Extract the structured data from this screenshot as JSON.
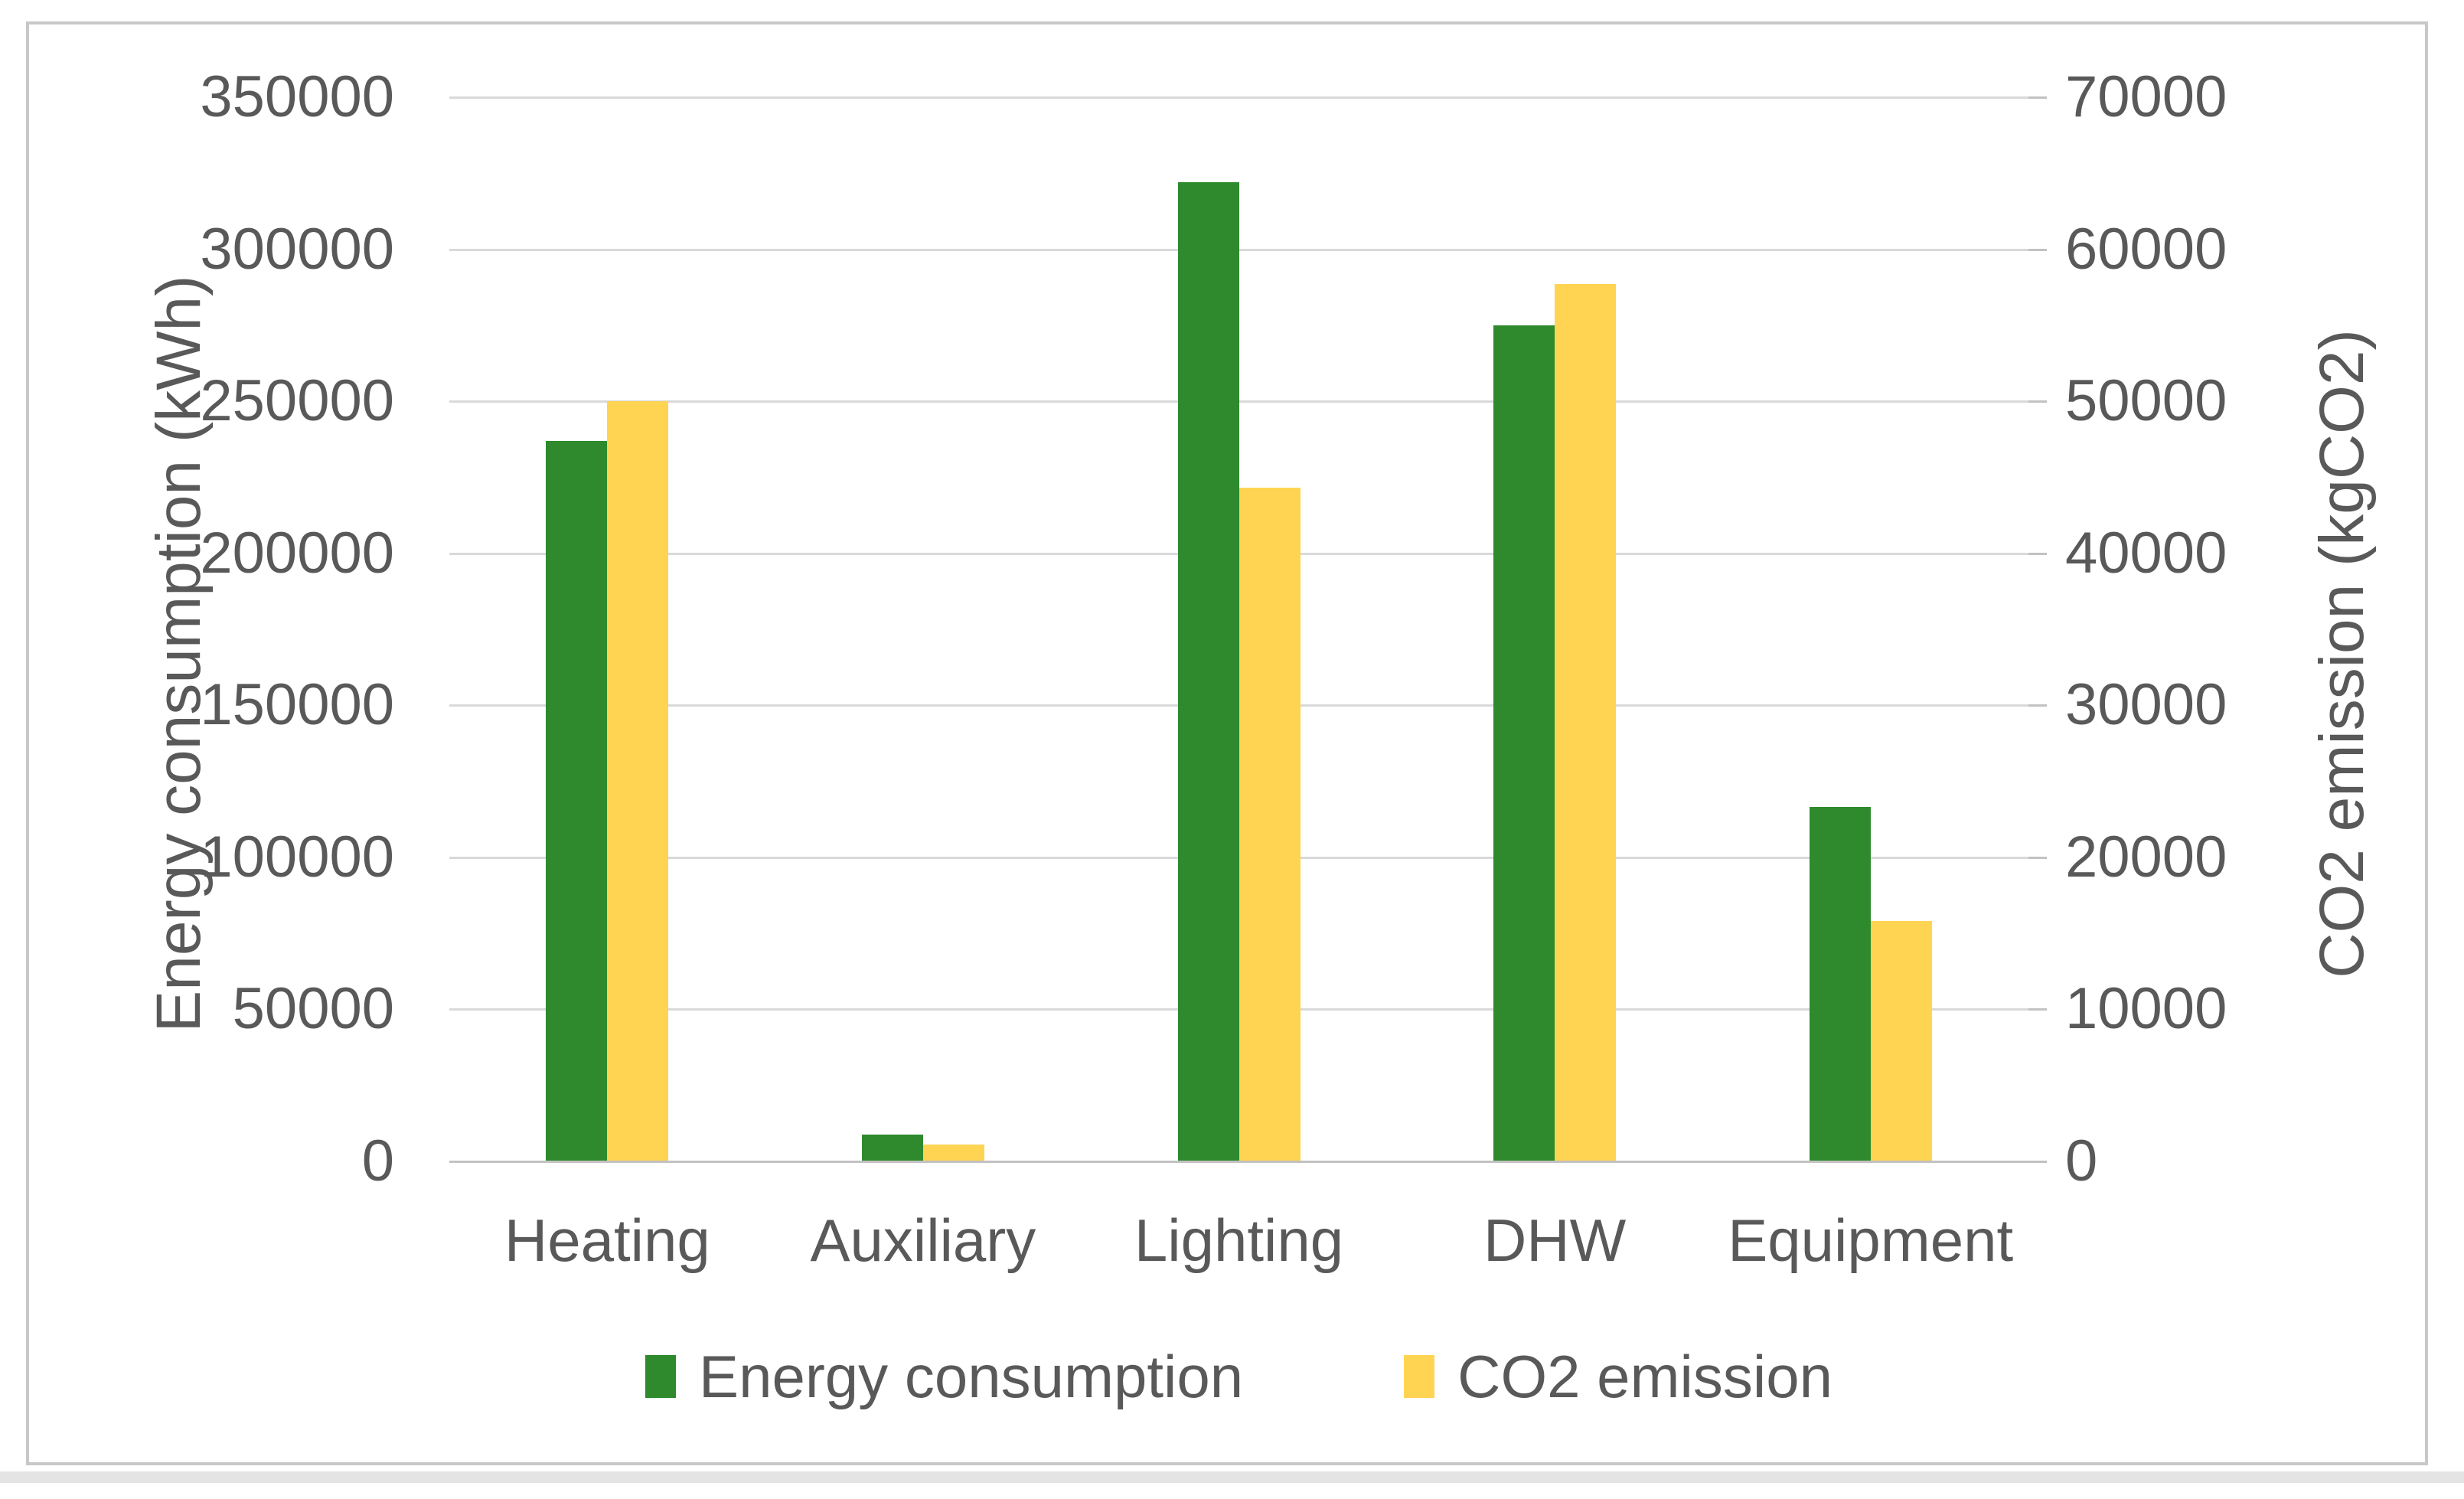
{
  "chart_data": {
    "type": "bar",
    "title": "",
    "categories": [
      "Heating",
      "Auxiliary",
      "Lighting",
      "DHW",
      "Equipment"
    ],
    "series": [
      {
        "name": "Energy consumption",
        "axis": "left",
        "color": "#2E8A2D",
        "values": [
          237000,
          8800,
          322000,
          275000,
          116500
        ]
      },
      {
        "name": "CO2 emission",
        "axis": "right",
        "color": "#FFD452",
        "values": [
          50000,
          1100,
          44300,
          57700,
          15800
        ]
      }
    ],
    "left_axis": {
      "label": "Energy consumption (kWh)",
      "min": 0,
      "max": 350000,
      "step": 50000,
      "tick_labels": [
        "350000",
        "300000",
        "250000",
        "200000",
        "150000",
        "100000",
        "50000",
        "0"
      ]
    },
    "right_axis": {
      "label": "CO2 emission (kgCO2)",
      "min": 0,
      "max": 70000,
      "step": 10000,
      "tick_labels": [
        "70000",
        "60000",
        "50000",
        "40000",
        "30000",
        "20000",
        "10000",
        "0"
      ]
    },
    "legend_position": "bottom",
    "grid": true
  },
  "palette": {
    "background": "#FFFFFF",
    "frame_border": "#C8C8C8",
    "gridline": "#D9D9D9",
    "axis_line": "#C2C2C2",
    "text": "#595959",
    "bottom_band": "#E4E4E4"
  }
}
